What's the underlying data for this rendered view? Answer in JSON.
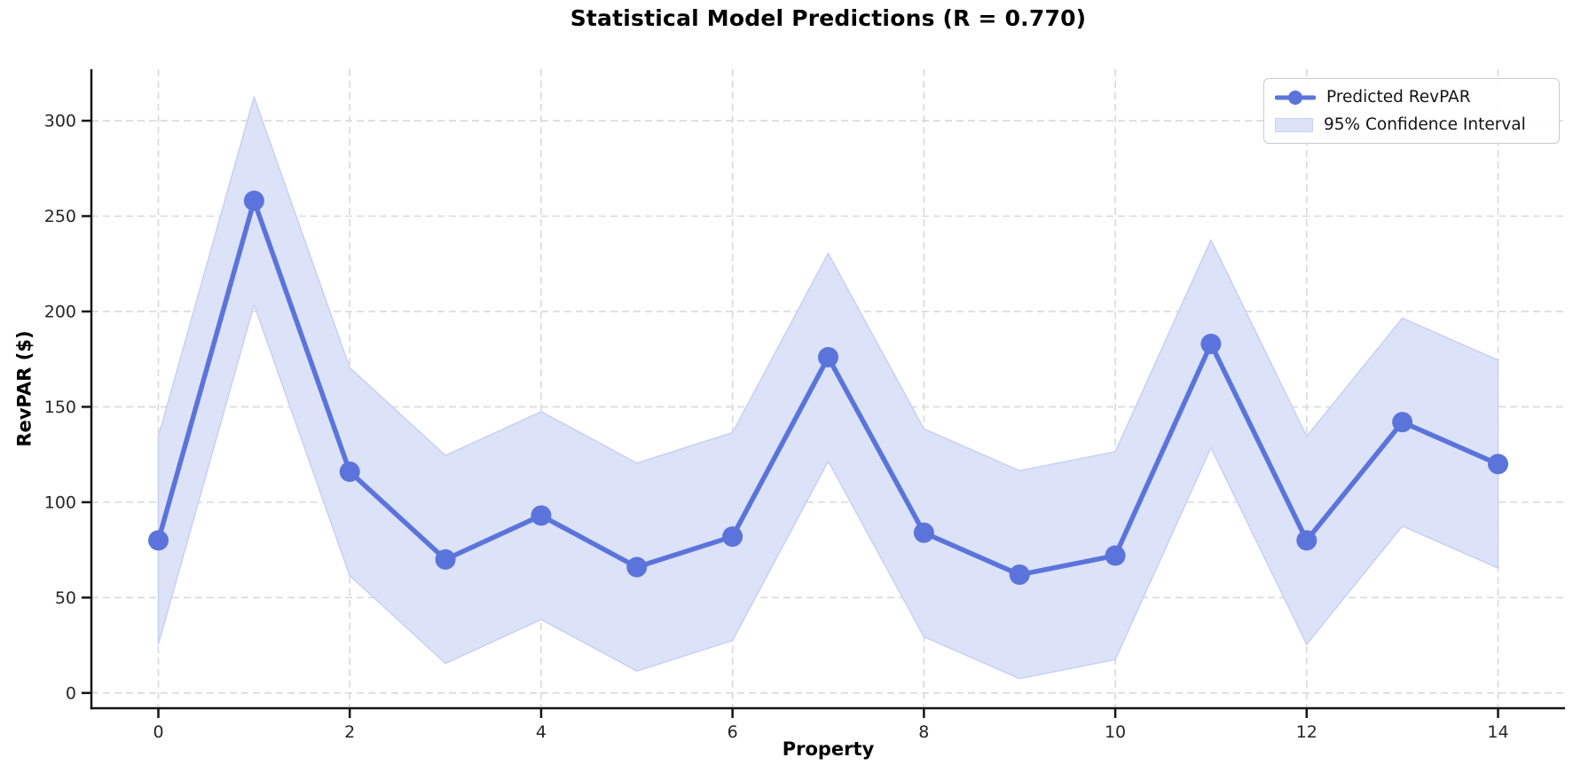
{
  "chart_data": {
    "type": "line",
    "title": "Statistical Model Predictions (R = 0.770)",
    "xlabel": "Property",
    "ylabel": "RevPAR ($)",
    "x": [
      0,
      1,
      2,
      3,
      4,
      5,
      6,
      7,
      8,
      9,
      10,
      11,
      12,
      13,
      14
    ],
    "series": [
      {
        "name": "Predicted RevPAR",
        "values": [
          80,
          258,
          116,
          70,
          93,
          66,
          82,
          176,
          84,
          62,
          72,
          183,
          80,
          142,
          120
        ]
      }
    ],
    "ci": {
      "name": "95% Confidence Interval",
      "half_width": 54.5,
      "upper": [
        134.5,
        312.5,
        170.5,
        124.5,
        147.5,
        120.5,
        136.5,
        230.5,
        138.5,
        116.5,
        126.5,
        237.5,
        134.5,
        196.5,
        174.5
      ],
      "lower": [
        25.5,
        203.5,
        61.5,
        15.5,
        38.5,
        11.5,
        27.5,
        121.5,
        29.5,
        7.5,
        17.5,
        128.5,
        25.5,
        87.5,
        65.5
      ]
    },
    "xticks": [
      0,
      2,
      4,
      6,
      8,
      10,
      12,
      14
    ],
    "yticks": [
      0,
      50,
      100,
      150,
      200,
      250,
      300
    ],
    "xlim": [
      -0.7,
      14.7
    ],
    "ylim": [
      -8,
      327
    ],
    "grid": true,
    "legend_position": "upper right",
    "colors": {
      "line": "#5b74db",
      "marker": "#5b74db",
      "band_fill": "#dce2f8",
      "band_edge": "#c7d1f3",
      "grid": "#d9d9d9",
      "spine": "#141414",
      "tick_text": "#262626"
    }
  }
}
